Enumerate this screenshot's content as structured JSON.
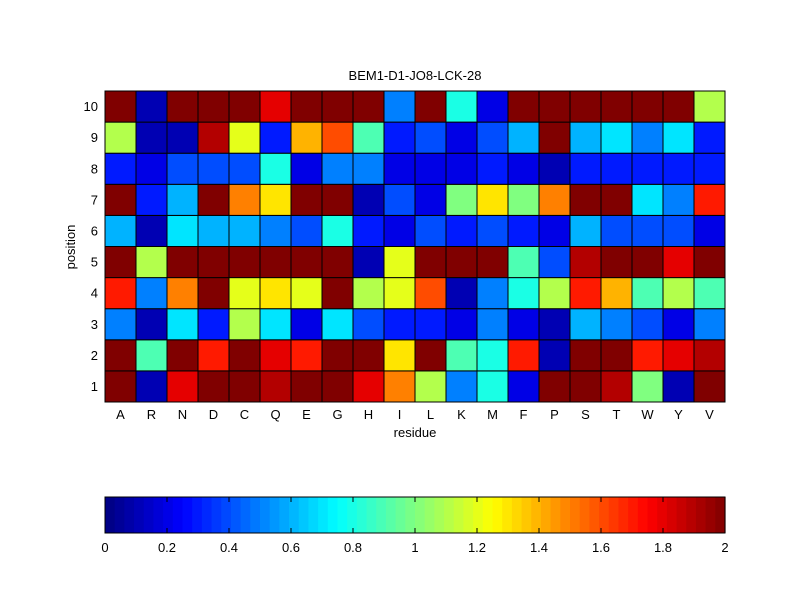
{
  "chart_data": {
    "type": "heatmap",
    "title": "BEM1-D1-JO8-LCK-28",
    "xlabel": "residue",
    "ylabel": "position",
    "x_categories": [
      "A",
      "R",
      "N",
      "D",
      "C",
      "Q",
      "E",
      "G",
      "H",
      "I",
      "L",
      "K",
      "M",
      "F",
      "P",
      "S",
      "T",
      "W",
      "Y",
      "V"
    ],
    "y_categories": [
      "1",
      "2",
      "3",
      "4",
      "5",
      "6",
      "7",
      "8",
      "9",
      "10"
    ],
    "values": [
      [
        2.0,
        0.1,
        1.8,
        2.0,
        2.0,
        1.9,
        2.0,
        2.0,
        1.8,
        1.5,
        1.1,
        0.5,
        0.8,
        0.2,
        2.0,
        2.0,
        1.9,
        1.0,
        0.1,
        2.0
      ],
      [
        2.0,
        0.9,
        2.0,
        1.7,
        2.0,
        1.8,
        1.7,
        2.0,
        2.0,
        1.3,
        2.0,
        0.9,
        0.8,
        1.7,
        0.1,
        2.0,
        2.0,
        1.7,
        1.8,
        1.9
      ],
      [
        0.5,
        0.1,
        0.7,
        0.3,
        1.1,
        0.7,
        0.2,
        0.7,
        0.4,
        0.3,
        0.3,
        0.2,
        0.5,
        0.2,
        0.1,
        0.6,
        0.5,
        0.4,
        0.2,
        0.5
      ],
      [
        1.7,
        0.5,
        1.5,
        2.0,
        1.2,
        1.3,
        1.2,
        2.0,
        1.1,
        1.2,
        1.6,
        0.1,
        0.5,
        0.8,
        1.1,
        1.7,
        1.4,
        0.9,
        1.1,
        0.9
      ],
      [
        2.0,
        1.1,
        2.0,
        2.0,
        2.0,
        2.0,
        2.0,
        2.0,
        0.1,
        1.2,
        2.0,
        2.0,
        2.0,
        0.9,
        0.4,
        1.9,
        2.0,
        2.0,
        1.8,
        2.0
      ],
      [
        0.6,
        0.1,
        0.7,
        0.6,
        0.6,
        0.5,
        0.4,
        0.8,
        0.3,
        0.2,
        0.4,
        0.3,
        0.4,
        0.3,
        0.2,
        0.6,
        0.4,
        0.4,
        0.4,
        0.2
      ],
      [
        2.0,
        0.3,
        0.6,
        2.0,
        1.5,
        1.3,
        2.0,
        2.0,
        0.1,
        0.4,
        0.2,
        1.0,
        1.3,
        1.0,
        1.5,
        2.0,
        2.0,
        0.7,
        0.5,
        1.7
      ],
      [
        0.3,
        0.2,
        0.4,
        0.4,
        0.4,
        0.8,
        0.2,
        0.5,
        0.5,
        0.2,
        0.2,
        0.2,
        0.3,
        0.2,
        0.1,
        0.3,
        0.3,
        0.3,
        0.3,
        0.3
      ],
      [
        1.1,
        0.1,
        0.1,
        1.9,
        1.2,
        0.3,
        1.4,
        1.6,
        0.9,
        0.3,
        0.4,
        0.2,
        0.4,
        0.6,
        2.0,
        0.6,
        0.7,
        0.5,
        0.7,
        0.3
      ],
      [
        2.0,
        0.1,
        2.0,
        2.0,
        2.0,
        1.8,
        2.0,
        2.0,
        2.0,
        0.5,
        2.0,
        0.8,
        0.2,
        2.0,
        2.0,
        2.0,
        2.0,
        2.0,
        2.0,
        1.1
      ]
    ],
    "colormap": "jet",
    "clim": [
      0,
      2
    ],
    "colorbar": {
      "placement": "bottom",
      "ticks": [
        "0",
        "0.2",
        "0.4",
        "0.6",
        "0.8",
        "1",
        "1.2",
        "1.4",
        "1.6",
        "1.8",
        "2"
      ]
    },
    "grid": false
  }
}
